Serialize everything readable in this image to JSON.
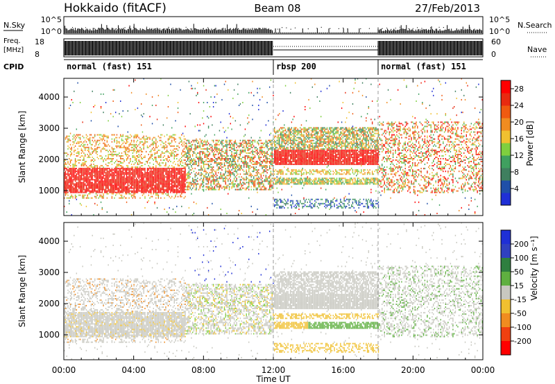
{
  "header": {
    "title": "Hokkaido (fitACF)",
    "beam": "Beam 08",
    "date": "27/Feb/2013"
  },
  "status_panel": {
    "nsky_label": "N.Sky",
    "nsearch_label": "N.Search",
    "nsky_ticks": [
      "10^5",
      "10^0"
    ],
    "nsearch_ticks": [
      "10^5",
      "10^0"
    ],
    "freq_label_1": "Freq.",
    "freq_label_2": "[MHz]",
    "freq_ticks": [
      "18",
      "8"
    ],
    "nave_label": "Nave",
    "nave_ticks": [
      "60",
      "0"
    ],
    "cpid_label": "CPID",
    "cpid_segments": [
      {
        "label": "normal (fast) 151",
        "start_hour": 0,
        "end_hour": 12
      },
      {
        "label": "rbsp 200",
        "start_hour": 12,
        "end_hour": 18
      },
      {
        "label": "normal (fast) 151",
        "start_hour": 18,
        "end_hour": 24
      }
    ]
  },
  "colors": {
    "power_scale": [
      "#1f2fd6",
      "#1f4fa8",
      "#3f7f5f",
      "#3fa05f",
      "#7fcf3f",
      "#f0c030",
      "#f08c20",
      "#f05a10",
      "#e82a10",
      "#ff0000"
    ],
    "velocity_scale": [
      "#1f2fd6",
      "#3040c0",
      "#2f7f3f",
      "#5fb040",
      "#7fcf3f",
      "#c8c8c0",
      "#c8c8c0",
      "#f0c030",
      "#f08c20",
      "#f04010",
      "#ff0000"
    ]
  },
  "chart_data": [
    {
      "type": "heatmap",
      "name": "power",
      "ylabel": "Slant Range [km]",
      "yticks": [
        "1000",
        "2000",
        "3000",
        "4000"
      ],
      "ylim": [
        200,
        4600
      ],
      "colorbar_label": "Power [dB]",
      "colorbar_ticks": [
        "4",
        "8",
        "12",
        "16",
        "20",
        "24",
        "28"
      ],
      "colorbar_range": [
        0,
        30
      ]
    },
    {
      "type": "heatmap",
      "name": "velocity",
      "ylabel": "Slant Range [km]",
      "yticks": [
        "1000",
        "2000",
        "3000",
        "4000"
      ],
      "ylim": [
        200,
        4600
      ],
      "colorbar_label": "Velocity [m s⁻¹]",
      "colorbar_ticks": [
        "200",
        "100",
        "50",
        "15",
        "-15",
        "-50",
        "-100",
        "-200"
      ]
    }
  ],
  "xaxis": {
    "label": "Time UT",
    "ticks": [
      "00:00",
      "04:00",
      "08:00",
      "12:00",
      "16:00",
      "20:00",
      "00:00"
    ],
    "xlim_hours": [
      0,
      24
    ]
  }
}
